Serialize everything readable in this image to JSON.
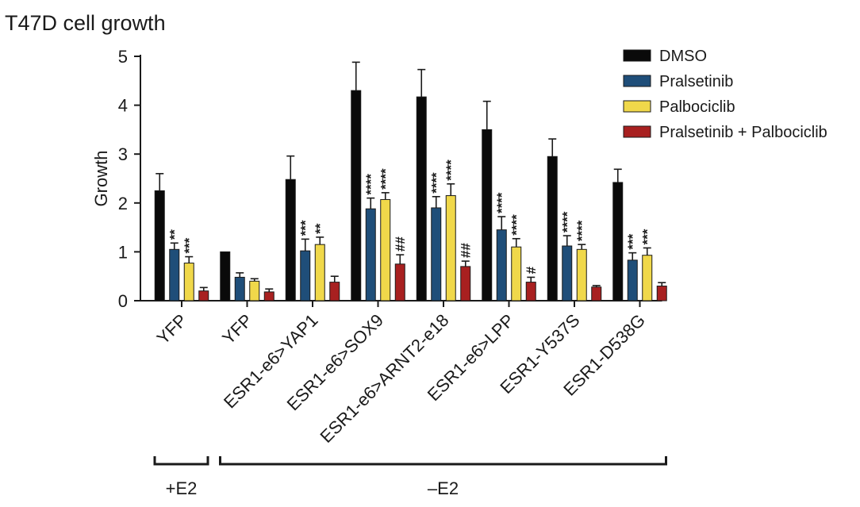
{
  "chart_data": {
    "type": "bar",
    "title": "T47D cell growth",
    "xlabel": "",
    "ylabel": "Growth",
    "ylim": [
      0,
      5
    ],
    "yticks": [
      "0",
      "1",
      "2",
      "3",
      "4",
      "5"
    ],
    "grid": false,
    "legend_position": "top-right",
    "categories": [
      "YFP",
      "YFP",
      "ESR1-e6>YAP1",
      "ESR1-e6>SOX9",
      "ESR1-e6>ARNT2-e18",
      "ESR1-e6>LPP",
      "ESR1-Y537S",
      "ESR1-D538G"
    ],
    "series": [
      {
        "name": "DMSO",
        "color": "#0a0a0a",
        "values": [
          2.25,
          1.0,
          2.48,
          4.3,
          4.17,
          3.5,
          2.95,
          2.42
        ],
        "errors": [
          0.35,
          0.0,
          0.48,
          0.58,
          0.56,
          0.58,
          0.36,
          0.27
        ],
        "significance": [
          "",
          "",
          "",
          "",
          "",
          "",
          "",
          ""
        ]
      },
      {
        "name": "Pralsetinib",
        "color": "#1f4e79",
        "values": [
          1.05,
          0.48,
          1.02,
          1.88,
          1.9,
          1.45,
          1.12,
          0.83
        ],
        "errors": [
          0.13,
          0.09,
          0.24,
          0.22,
          0.23,
          0.27,
          0.21,
          0.15
        ],
        "significance": [
          "**",
          "",
          "***",
          "****",
          "****",
          "****",
          "****",
          "***"
        ]
      },
      {
        "name": "Palbociclib",
        "color": "#f0d84a",
        "values": [
          0.77,
          0.4,
          1.15,
          2.07,
          2.15,
          1.1,
          1.05,
          0.93
        ],
        "errors": [
          0.13,
          0.05,
          0.15,
          0.14,
          0.24,
          0.17,
          0.1,
          0.15
        ],
        "significance": [
          "***",
          "",
          "**",
          "****",
          "****",
          "****",
          "****",
          "***"
        ]
      },
      {
        "name": "Pralsetinib + Palbociclib",
        "color": "#a82020",
        "values": [
          0.2,
          0.18,
          0.38,
          0.75,
          0.7,
          0.38,
          0.28,
          0.3
        ],
        "errors": [
          0.07,
          0.06,
          0.12,
          0.19,
          0.11,
          0.1,
          0.03,
          0.07
        ],
        "significance": [
          "",
          "",
          "",
          "##",
          "##",
          "#",
          "",
          ""
        ]
      }
    ],
    "groups": [
      {
        "label": "+E2",
        "categories": [
          0
        ]
      },
      {
        "label": "–E2",
        "categories": [
          1,
          2,
          3,
          4,
          5,
          6,
          7
        ]
      }
    ]
  }
}
